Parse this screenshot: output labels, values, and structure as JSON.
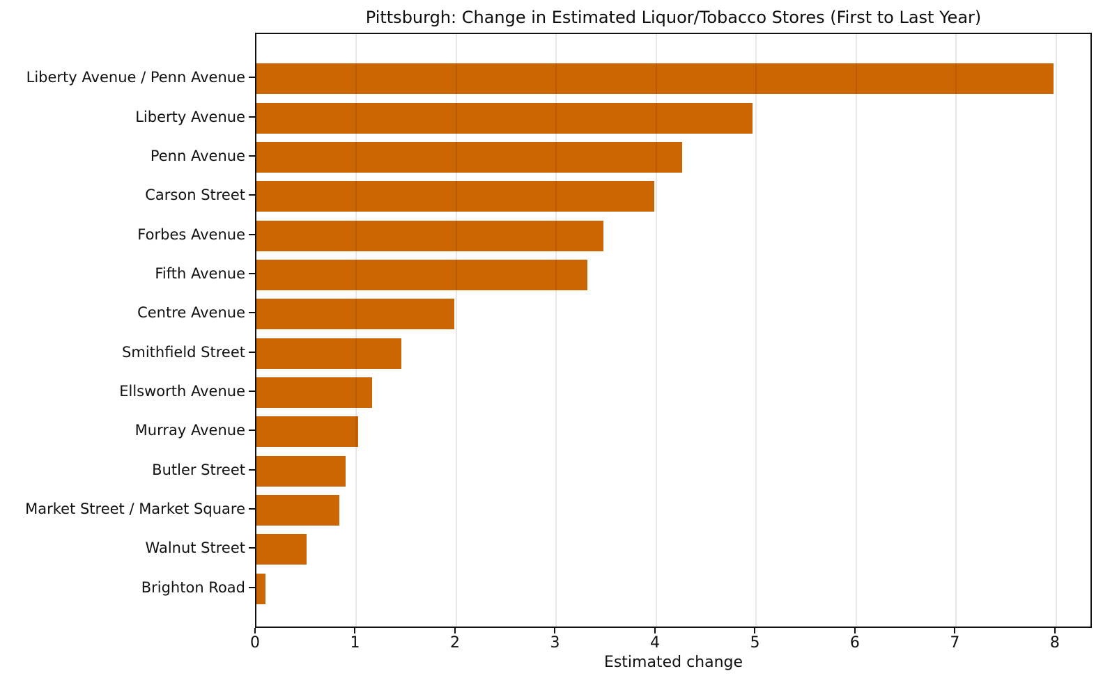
{
  "chart_data": {
    "type": "bar",
    "orientation": "horizontal",
    "title": "Pittsburgh: Change in Estimated Liquor/Tobacco Stores (First to Last Year)",
    "xlabel": "Estimated change",
    "ylabel": "",
    "categories": [
      "Liberty Avenue / Penn Avenue",
      "Liberty Avenue",
      "Penn Avenue",
      "Carson Street",
      "Forbes Avenue",
      "Fifth Avenue",
      "Centre Avenue",
      "Smithfield Street",
      "Ellsworth Avenue",
      "Murray Avenue",
      "Butler Street",
      "Market Street / Market Square",
      "Walnut Street",
      "Brighton Road"
    ],
    "values": [
      7.97,
      4.96,
      4.26,
      3.98,
      3.47,
      3.31,
      1.98,
      1.45,
      1.16,
      1.02,
      0.89,
      0.83,
      0.5,
      0.09
    ],
    "xlim": [
      0,
      8.37
    ],
    "xticks": [
      0,
      1,
      2,
      3,
      4,
      5,
      6,
      7,
      8
    ],
    "grid": "vertical",
    "legend_position": "none",
    "bar_color": "#cc6602"
  },
  "colors": {
    "bar": "#cc6602",
    "grid": "#e8e8e8",
    "spine": "#111111",
    "text": "#111111",
    "background": "#ffffff"
  }
}
